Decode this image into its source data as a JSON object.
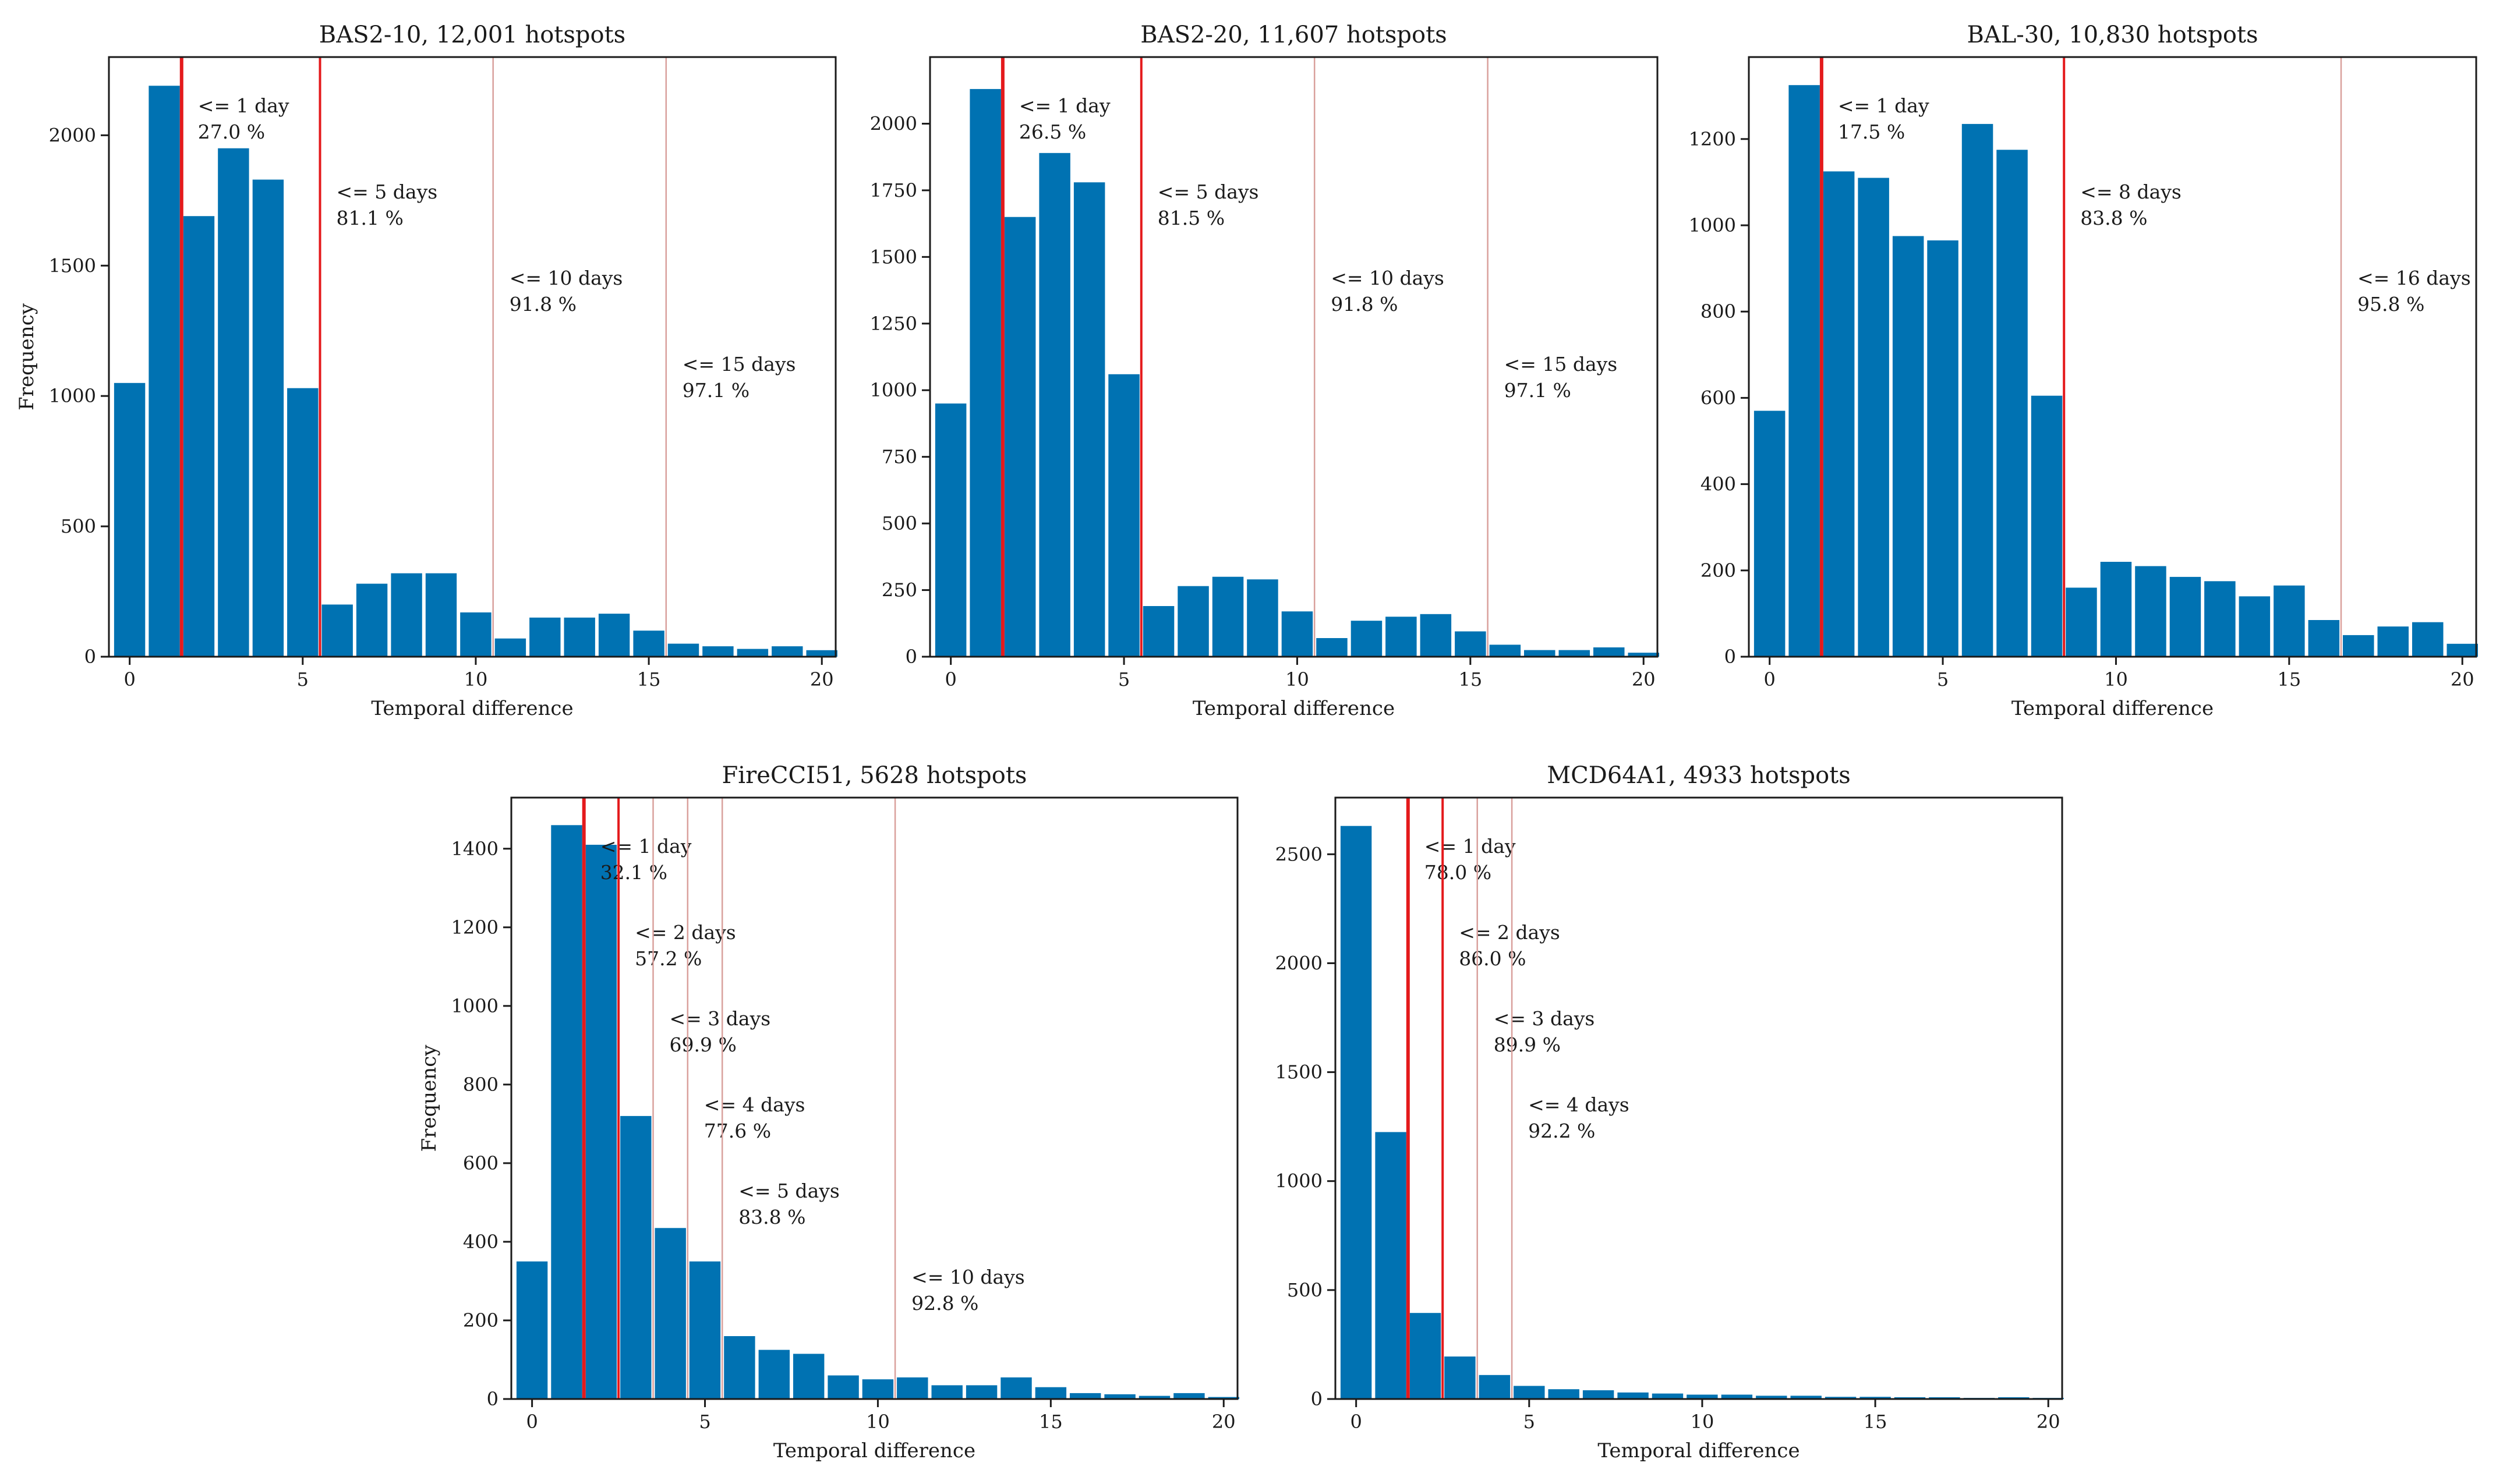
{
  "figure": {
    "bar_color": "#0072b2",
    "line_color": "#e41a1c",
    "faint_line_color": "#d9a09c",
    "ylabel": "Frequency",
    "xlabel": "Temporal difference"
  },
  "chart_data": [
    {
      "type": "bar",
      "title": "BAS2-10, 12,001 hotspots",
      "xlabel": "Temporal difference",
      "ylabel": "Frequency",
      "xlim": [
        -0.6,
        20.4
      ],
      "ylim": [
        0,
        2300
      ],
      "x": [
        0,
        1,
        2,
        3,
        4,
        5,
        6,
        7,
        8,
        9,
        10,
        11,
        12,
        13,
        14,
        15,
        16,
        17,
        18,
        19,
        20
      ],
      "values": [
        1050,
        2190,
        1690,
        1950,
        1830,
        1030,
        200,
        280,
        320,
        320,
        170,
        70,
        150,
        150,
        165,
        100,
        50,
        40,
        30,
        40,
        25
      ],
      "xticks": [
        0,
        5,
        10,
        15,
        20
      ],
      "yticks": [
        0,
        500,
        1000,
        1500,
        2000
      ],
      "ytick_labels": [
        "0",
        "500",
        "1000",
        "1500",
        "2000"
      ],
      "thresholds": [
        {
          "x": 1.5,
          "days": "<= 1 day",
          "pct": "27.0 %",
          "strong": true,
          "level": 0
        },
        {
          "x": 5.5,
          "days": "<= 5 days",
          "pct": "81.1 %",
          "strong": true,
          "level": 1
        },
        {
          "x": 10.5,
          "days": "<= 10 days",
          "pct": "91.8 %",
          "strong": false,
          "level": 2
        },
        {
          "x": 15.5,
          "days": "<= 15 days",
          "pct": "97.1 %",
          "strong": false,
          "level": 3
        }
      ]
    },
    {
      "type": "bar",
      "title": "BAS2-20, 11,607 hotspots",
      "xlabel": "Temporal difference",
      "ylabel": "",
      "xlim": [
        -0.6,
        20.4
      ],
      "ylim": [
        0,
        2250
      ],
      "x": [
        0,
        1,
        2,
        3,
        4,
        5,
        6,
        7,
        8,
        9,
        10,
        11,
        12,
        13,
        14,
        15,
        16,
        17,
        18,
        19,
        20
      ],
      "values": [
        950,
        2130,
        1650,
        1890,
        1780,
        1060,
        190,
        265,
        300,
        290,
        170,
        70,
        135,
        150,
        160,
        95,
        45,
        25,
        25,
        35,
        15
      ],
      "xticks": [
        0,
        5,
        10,
        15,
        20
      ],
      "yticks": [
        0,
        250,
        500,
        750,
        1000,
        1250,
        1500,
        1750,
        2000
      ],
      "ytick_labels": [
        "0",
        "250",
        "500",
        "750",
        "1000",
        "1250",
        "1500",
        "1750",
        "2000"
      ],
      "thresholds": [
        {
          "x": 1.5,
          "days": "<= 1 day",
          "pct": "26.5 %",
          "strong": true,
          "level": 0
        },
        {
          "x": 5.5,
          "days": "<= 5 days",
          "pct": "81.5 %",
          "strong": true,
          "level": 1
        },
        {
          "x": 10.5,
          "days": "<= 10 days",
          "pct": "91.8 %",
          "strong": false,
          "level": 2
        },
        {
          "x": 15.5,
          "days": "<= 15 days",
          "pct": "97.1 %",
          "strong": false,
          "level": 3
        }
      ]
    },
    {
      "type": "bar",
      "title": "BAL-30, 10,830 hotspots",
      "xlabel": "Temporal difference",
      "ylabel": "",
      "xlim": [
        -0.6,
        20.4
      ],
      "ylim": [
        0,
        1390
      ],
      "x": [
        0,
        1,
        2,
        3,
        4,
        5,
        6,
        7,
        8,
        9,
        10,
        11,
        12,
        13,
        14,
        15,
        16,
        17,
        18,
        19,
        20
      ],
      "values": [
        570,
        1325,
        1125,
        1110,
        975,
        965,
        1235,
        1175,
        605,
        160,
        220,
        210,
        185,
        175,
        140,
        165,
        85,
        50,
        70,
        80,
        30
      ],
      "xticks": [
        0,
        5,
        10,
        15,
        20
      ],
      "yticks": [
        0,
        200,
        400,
        600,
        800,
        1000,
        1200
      ],
      "ytick_labels": [
        "0",
        "200",
        "400",
        "600",
        "800",
        "1000",
        "1200"
      ],
      "thresholds": [
        {
          "x": 1.5,
          "days": "<= 1 day",
          "pct": "17.5 %",
          "strong": true,
          "level": 0
        },
        {
          "x": 8.5,
          "days": "<= 8 days",
          "pct": "83.8 %",
          "strong": true,
          "level": 1
        },
        {
          "x": 16.5,
          "days": "<= 16 days",
          "pct": "95.8 %",
          "strong": false,
          "level": 2
        }
      ]
    },
    {
      "type": "bar",
      "title": "FireCCI51, 5628 hotspots",
      "xlabel": "Temporal difference",
      "ylabel": "Frequency",
      "xlim": [
        -0.6,
        20.4
      ],
      "ylim": [
        0,
        1530
      ],
      "x": [
        0,
        1,
        2,
        3,
        4,
        5,
        6,
        7,
        8,
        9,
        10,
        11,
        12,
        13,
        14,
        15,
        16,
        17,
        18,
        19,
        20
      ],
      "values": [
        350,
        1460,
        1410,
        720,
        435,
        350,
        160,
        125,
        115,
        60,
        50,
        55,
        35,
        35,
        55,
        30,
        15,
        12,
        8,
        15,
        5
      ],
      "xticks": [
        0,
        5,
        10,
        15,
        20
      ],
      "yticks": [
        0,
        200,
        400,
        600,
        800,
        1000,
        1200,
        1400
      ],
      "ytick_labels": [
        "0",
        "200",
        "400",
        "600",
        "800",
        "1000",
        "1200",
        "1400"
      ],
      "thresholds": [
        {
          "x": 1.5,
          "days": "<= 1 day",
          "pct": "32.1 %",
          "strong": true,
          "level": 0
        },
        {
          "x": 2.5,
          "days": "<= 2 days",
          "pct": "57.2 %",
          "strong": true,
          "level": 1
        },
        {
          "x": 3.5,
          "days": "<= 3 days",
          "pct": "69.9 %",
          "strong": false,
          "level": 2
        },
        {
          "x": 4.5,
          "days": "<= 4 days",
          "pct": "77.6 %",
          "strong": false,
          "level": 3
        },
        {
          "x": 5.5,
          "days": "<= 5 days",
          "pct": "83.8 %",
          "strong": false,
          "level": 4
        },
        {
          "x": 10.5,
          "days": "<= 10 days",
          "pct": "92.8 %",
          "strong": false,
          "level": 5
        }
      ]
    },
    {
      "type": "bar",
      "title": "MCD64A1, 4933 hotspots",
      "xlabel": "Temporal difference",
      "ylabel": "",
      "xlim": [
        -0.6,
        20.4
      ],
      "ylim": [
        0,
        2760
      ],
      "x": [
        0,
        1,
        2,
        3,
        4,
        5,
        6,
        7,
        8,
        9,
        10,
        11,
        12,
        13,
        14,
        15,
        16,
        17,
        18,
        19,
        20
      ],
      "values": [
        2630,
        1225,
        395,
        195,
        110,
        60,
        45,
        40,
        30,
        25,
        20,
        20,
        15,
        15,
        10,
        10,
        8,
        8,
        5,
        8,
        5
      ],
      "xticks": [
        0,
        5,
        10,
        15,
        20
      ],
      "yticks": [
        0,
        500,
        1000,
        1500,
        2000,
        2500
      ],
      "ytick_labels": [
        "0",
        "500",
        "1000",
        "1500",
        "2000",
        "2500"
      ],
      "thresholds": [
        {
          "x": 1.5,
          "days": "<= 1 day",
          "pct": "78.0 %",
          "strong": true,
          "level": 0
        },
        {
          "x": 2.5,
          "days": "<= 2 days",
          "pct": "86.0 %",
          "strong": true,
          "level": 1
        },
        {
          "x": 3.5,
          "days": "<= 3 days",
          "pct": "89.9 %",
          "strong": false,
          "level": 2
        },
        {
          "x": 4.5,
          "days": "<= 4 days",
          "pct": "92.2 %",
          "strong": false,
          "level": 3
        }
      ]
    }
  ]
}
